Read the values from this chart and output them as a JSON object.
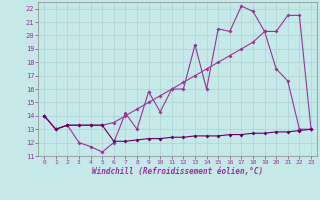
{
  "xlabel": "Windchill (Refroidissement éolien,°C)",
  "xlim": [
    -0.5,
    23.5
  ],
  "ylim": [
    11,
    22.5
  ],
  "xticks": [
    0,
    1,
    2,
    3,
    4,
    5,
    6,
    7,
    8,
    9,
    10,
    11,
    12,
    13,
    14,
    15,
    16,
    17,
    18,
    19,
    20,
    21,
    22,
    23
  ],
  "yticks": [
    11,
    12,
    13,
    14,
    15,
    16,
    17,
    18,
    19,
    20,
    21,
    22
  ],
  "bg_color": "#c5e8e8",
  "grid_color": "#aacccc",
  "line_color1": "#993399",
  "line_color2": "#993399",
  "line_color3": "#660066",
  "line1_x": [
    0,
    1,
    2,
    3,
    4,
    5,
    6,
    7,
    8,
    9,
    10,
    11,
    12,
    13,
    14,
    15,
    16,
    17,
    18,
    19,
    20,
    21,
    22,
    23
  ],
  "line1_y": [
    14.0,
    13.0,
    13.3,
    12.0,
    11.7,
    11.3,
    12.0,
    14.2,
    13.0,
    15.8,
    14.3,
    16.0,
    16.0,
    19.3,
    16.0,
    20.5,
    20.3,
    22.2,
    21.8,
    20.3,
    17.5,
    16.6,
    13.0,
    13.0
  ],
  "line2_x": [
    0,
    1,
    2,
    3,
    4,
    5,
    6,
    7,
    8,
    9,
    10,
    11,
    12,
    13,
    14,
    15,
    16,
    17,
    18,
    19,
    20,
    21,
    22,
    23
  ],
  "line2_y": [
    14.0,
    13.0,
    13.3,
    13.3,
    13.3,
    13.3,
    13.5,
    14.0,
    14.5,
    15.0,
    15.5,
    16.0,
    16.5,
    17.0,
    17.5,
    18.0,
    18.5,
    19.0,
    19.5,
    20.3,
    20.3,
    21.5,
    21.5,
    13.0
  ],
  "line3_x": [
    0,
    1,
    2,
    3,
    4,
    5,
    6,
    7,
    8,
    9,
    10,
    11,
    12,
    13,
    14,
    15,
    16,
    17,
    18,
    19,
    20,
    21,
    22,
    23
  ],
  "line3_y": [
    14.0,
    13.0,
    13.3,
    13.3,
    13.3,
    13.3,
    12.1,
    12.1,
    12.2,
    12.3,
    12.3,
    12.4,
    12.4,
    12.5,
    12.5,
    12.5,
    12.6,
    12.6,
    12.7,
    12.7,
    12.8,
    12.8,
    12.9,
    13.0
  ]
}
